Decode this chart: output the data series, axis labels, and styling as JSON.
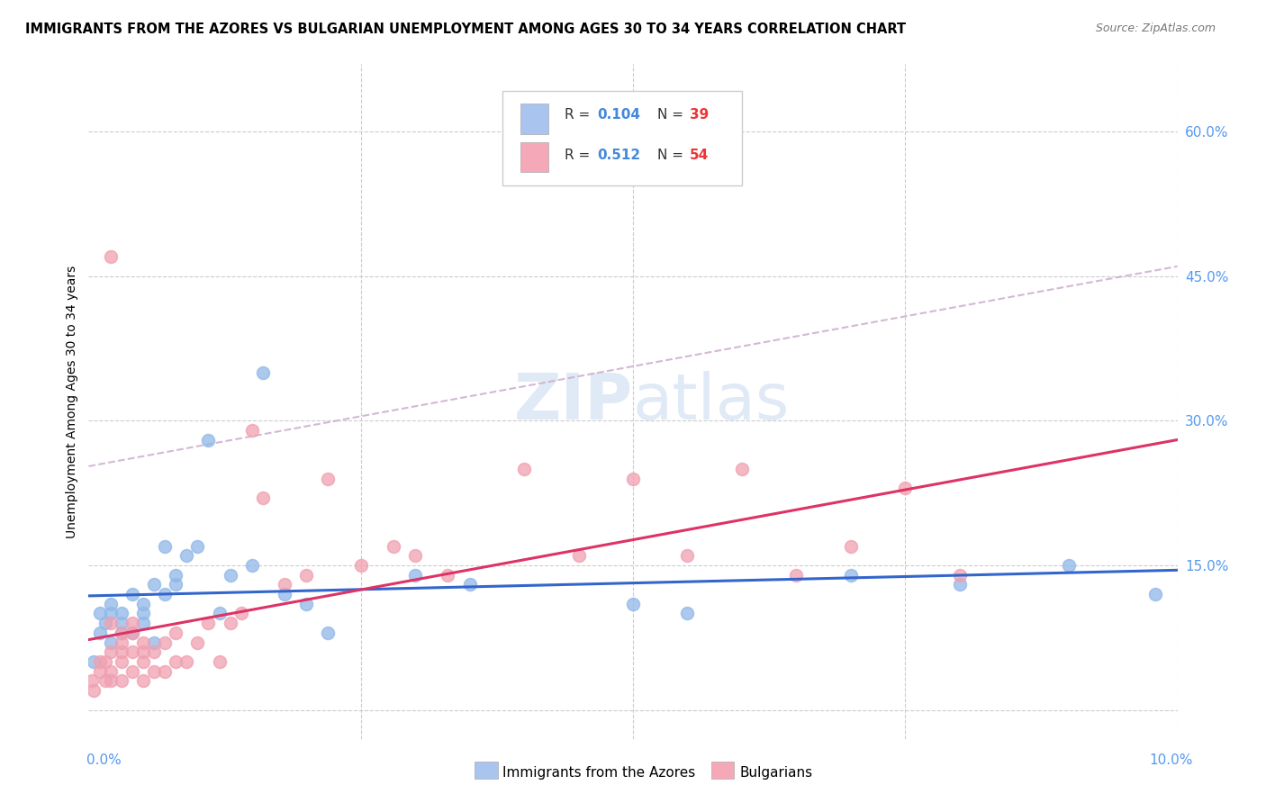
{
  "title": "IMMIGRANTS FROM THE AZORES VS BULGARIAN UNEMPLOYMENT AMONG AGES 30 TO 34 YEARS CORRELATION CHART",
  "source": "Source: ZipAtlas.com",
  "ylabel": "Unemployment Among Ages 30 to 34 years",
  "right_yticks": [
    "60.0%",
    "45.0%",
    "30.0%",
    "15.0%"
  ],
  "right_ytick_vals": [
    0.6,
    0.45,
    0.3,
    0.15
  ],
  "legend_color1": "#aac4f0",
  "legend_color2": "#f4a8b8",
  "scatter_color1": "#90b8e8",
  "scatter_color2": "#f0a0b0",
  "trendline1_color": "#3366cc",
  "trendline2_color": "#dd3366",
  "trendline_dashed_color": "#c8a8c8",
  "right_axis_color": "#5599ee",
  "xmin": 0.0,
  "xmax": 0.1,
  "ymin": -0.03,
  "ymax": 0.67,
  "azores_x": [
    0.0005,
    0.001,
    0.001,
    0.0015,
    0.002,
    0.002,
    0.002,
    0.003,
    0.003,
    0.003,
    0.004,
    0.004,
    0.005,
    0.005,
    0.005,
    0.006,
    0.006,
    0.007,
    0.007,
    0.008,
    0.008,
    0.009,
    0.01,
    0.011,
    0.012,
    0.013,
    0.015,
    0.016,
    0.018,
    0.02,
    0.022,
    0.03,
    0.035,
    0.05,
    0.055,
    0.07,
    0.08,
    0.09,
    0.098
  ],
  "azores_y": [
    0.05,
    0.08,
    0.1,
    0.09,
    0.07,
    0.1,
    0.11,
    0.08,
    0.09,
    0.1,
    0.08,
    0.12,
    0.1,
    0.11,
    0.09,
    0.13,
    0.07,
    0.17,
    0.12,
    0.14,
    0.13,
    0.16,
    0.17,
    0.28,
    0.1,
    0.14,
    0.15,
    0.35,
    0.12,
    0.11,
    0.08,
    0.14,
    0.13,
    0.11,
    0.1,
    0.14,
    0.13,
    0.15,
    0.12
  ],
  "bulgarian_x": [
    0.0003,
    0.0005,
    0.001,
    0.001,
    0.0015,
    0.0015,
    0.002,
    0.002,
    0.002,
    0.002,
    0.003,
    0.003,
    0.003,
    0.003,
    0.004,
    0.004,
    0.004,
    0.005,
    0.005,
    0.005,
    0.006,
    0.006,
    0.007,
    0.007,
    0.008,
    0.008,
    0.009,
    0.01,
    0.011,
    0.012,
    0.013,
    0.014,
    0.015,
    0.016,
    0.018,
    0.02,
    0.022,
    0.025,
    0.028,
    0.03,
    0.033,
    0.04,
    0.045,
    0.05,
    0.055,
    0.06,
    0.065,
    0.07,
    0.075,
    0.08,
    0.002,
    0.003,
    0.004,
    0.005
  ],
  "bulgarian_y": [
    0.03,
    0.02,
    0.04,
    0.05,
    0.03,
    0.05,
    0.03,
    0.04,
    0.06,
    0.47,
    0.03,
    0.05,
    0.07,
    0.06,
    0.04,
    0.06,
    0.08,
    0.03,
    0.05,
    0.07,
    0.04,
    0.06,
    0.04,
    0.07,
    0.05,
    0.08,
    0.05,
    0.07,
    0.09,
    0.05,
    0.09,
    0.1,
    0.29,
    0.22,
    0.13,
    0.14,
    0.24,
    0.15,
    0.17,
    0.16,
    0.14,
    0.25,
    0.16,
    0.24,
    0.16,
    0.25,
    0.14,
    0.17,
    0.23,
    0.14,
    0.09,
    0.08,
    0.09,
    0.06
  ],
  "watermark_zip": "ZIP",
  "watermark_atlas": "atlas",
  "legend_R_color": "#4488dd",
  "legend_N_color": "#ee3333",
  "bottom_legend_label1": "Immigrants from the Azores",
  "bottom_legend_label2": "Bulgarians"
}
